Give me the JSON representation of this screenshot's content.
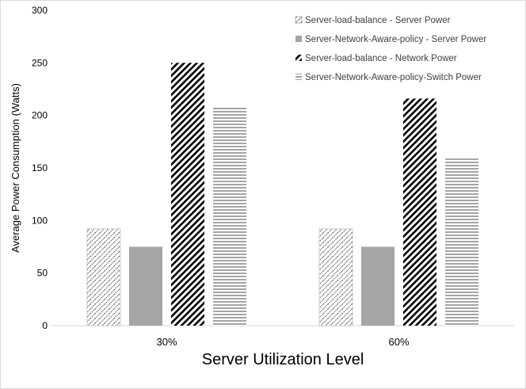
{
  "chart_data": {
    "type": "bar",
    "categories": [
      "30%",
      "60%"
    ],
    "series": [
      {
        "name": "Server-load-balance - Server Power",
        "values": [
          92,
          92
        ],
        "pattern": "dotted-hatch",
        "color": "#595959"
      },
      {
        "name": "Server-Network-Aware-policy - Server Power",
        "values": [
          75,
          75
        ],
        "pattern": "solid",
        "color": "#a5a5a5"
      },
      {
        "name": "Server-load-balance - Network Power",
        "values": [
          250,
          216
        ],
        "pattern": "wide-diagonal",
        "color": "#000000"
      },
      {
        "name": "Server-Network-Aware-policy-Switch Power",
        "values": [
          208,
          159
        ],
        "pattern": "horizontal-lines",
        "color": "#a5a5a5"
      }
    ],
    "title": "",
    "xlabel": "Server Utilization Level",
    "ylabel": "Average Power Consumption (Watts)",
    "ylim": [
      0,
      300
    ],
    "yticks": [
      0,
      50,
      100,
      150,
      200,
      250,
      300
    ],
    "grid": false,
    "legend_position": "top-right"
  }
}
